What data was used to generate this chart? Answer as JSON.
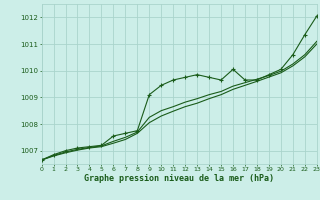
{
  "title": "Graphe pression niveau de la mer (hPa)",
  "bg_color": "#cceee8",
  "grid_color": "#aad4cc",
  "line_color": "#1a5c1a",
  "xlim": [
    0,
    23
  ],
  "ylim": [
    1006.5,
    1012.5
  ],
  "xticks": [
    0,
    1,
    2,
    3,
    4,
    5,
    6,
    7,
    8,
    9,
    10,
    11,
    12,
    13,
    14,
    15,
    16,
    17,
    18,
    19,
    20,
    21,
    22,
    23
  ],
  "yticks": [
    1007,
    1008,
    1009,
    1010,
    1011,
    1012
  ],
  "series1_x": [
    0,
    1,
    2,
    3,
    4,
    5,
    6,
    7,
    8,
    9,
    10,
    11,
    12,
    13,
    14,
    15,
    16,
    17,
    18,
    19,
    20,
    21,
    22,
    23
  ],
  "series1_y": [
    1006.65,
    1006.85,
    1007.0,
    1007.1,
    1007.15,
    1007.2,
    1007.55,
    1007.65,
    1007.75,
    1009.1,
    1009.45,
    1009.65,
    1009.75,
    1009.85,
    1009.75,
    1009.65,
    1010.05,
    1009.65,
    1009.65,
    1009.85,
    1010.05,
    1010.6,
    1011.35,
    1012.05
  ],
  "series2_x": [
    0,
    1,
    2,
    3,
    4,
    5,
    6,
    7,
    8,
    9,
    10,
    11,
    12,
    13,
    14,
    15,
    16,
    17,
    18,
    19,
    20,
    21,
    22,
    23
  ],
  "series2_y": [
    1006.65,
    1006.82,
    1006.95,
    1007.05,
    1007.12,
    1007.18,
    1007.35,
    1007.5,
    1007.7,
    1008.25,
    1008.5,
    1008.65,
    1008.82,
    1008.95,
    1009.1,
    1009.22,
    1009.42,
    1009.55,
    1009.68,
    1009.82,
    1009.98,
    1010.25,
    1010.6,
    1011.1
  ],
  "series3_x": [
    0,
    1,
    2,
    3,
    4,
    5,
    6,
    7,
    8,
    9,
    10,
    11,
    12,
    13,
    14,
    15,
    16,
    17,
    18,
    19,
    20,
    21,
    22,
    23
  ],
  "series3_y": [
    1006.65,
    1006.8,
    1006.92,
    1007.02,
    1007.1,
    1007.15,
    1007.28,
    1007.42,
    1007.65,
    1008.05,
    1008.3,
    1008.48,
    1008.65,
    1008.78,
    1008.95,
    1009.1,
    1009.3,
    1009.45,
    1009.6,
    1009.76,
    1009.92,
    1010.18,
    1010.52,
    1011.0
  ]
}
